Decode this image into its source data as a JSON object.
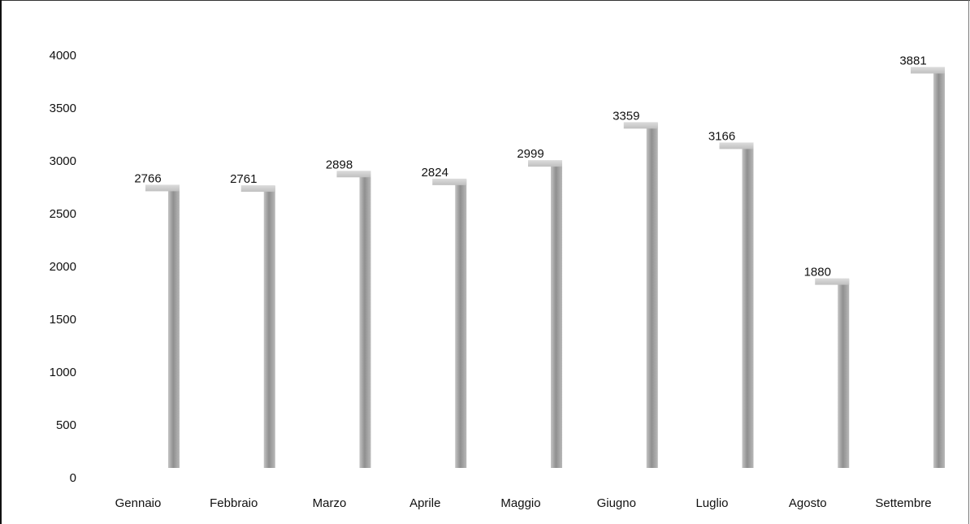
{
  "chart_data": {
    "type": "bar",
    "title": "",
    "xlabel": "",
    "ylabel": "",
    "categories": [
      "Gennaio",
      "Febbraio",
      "Marzo",
      "Aprile",
      "Maggio",
      "Giugno",
      "Luglio",
      "Agosto",
      "Settembre"
    ],
    "values": [
      2766,
      2761,
      2898,
      2824,
      2999,
      3359,
      3166,
      1880,
      3881
    ],
    "value_labels": [
      "2766",
      "2761",
      "2898",
      "2824",
      "2999",
      "3359",
      "3166",
      "1880",
      "3881"
    ],
    "ylim": [
      0,
      4000
    ],
    "yticks": [
      0,
      500,
      1000,
      1500,
      2000,
      2500,
      3000,
      3500,
      4000
    ],
    "ytick_labels": [
      "0",
      "500",
      "1000",
      "1500",
      "2000",
      "2500",
      "3000",
      "3500",
      "4000"
    ],
    "grid": false,
    "legend": "none",
    "bar_color": "#a8a8a8"
  }
}
